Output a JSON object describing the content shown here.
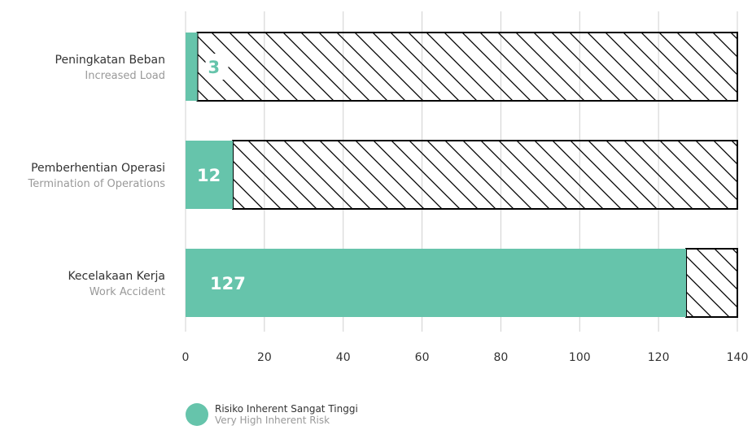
{
  "colors": {
    "fill": "#66c4ab",
    "grid": "#d0d0d0",
    "outline": "#000000"
  },
  "chart_data": {
    "type": "bar",
    "orientation": "horizontal",
    "stacked": true,
    "categories": [
      {
        "main": "Peningkatan Beban",
        "sub": "Increased Load"
      },
      {
        "main": "Pemberhentian Operasi",
        "sub": "Termination of Operations"
      },
      {
        "main": "Kecelakaan Kerja",
        "sub": "Work Accident"
      }
    ],
    "series": [
      {
        "name": "Risiko Inherent Sangat Tinggi",
        "name_sub": "Very High Inherent Risk",
        "values": [
          3,
          12,
          127
        ]
      }
    ],
    "remainder_total": 140,
    "xlim": [
      0,
      140
    ],
    "xticks": [
      0,
      20,
      40,
      60,
      80,
      100,
      120,
      140
    ],
    "grid": true,
    "legend_position": "bottom-left"
  }
}
